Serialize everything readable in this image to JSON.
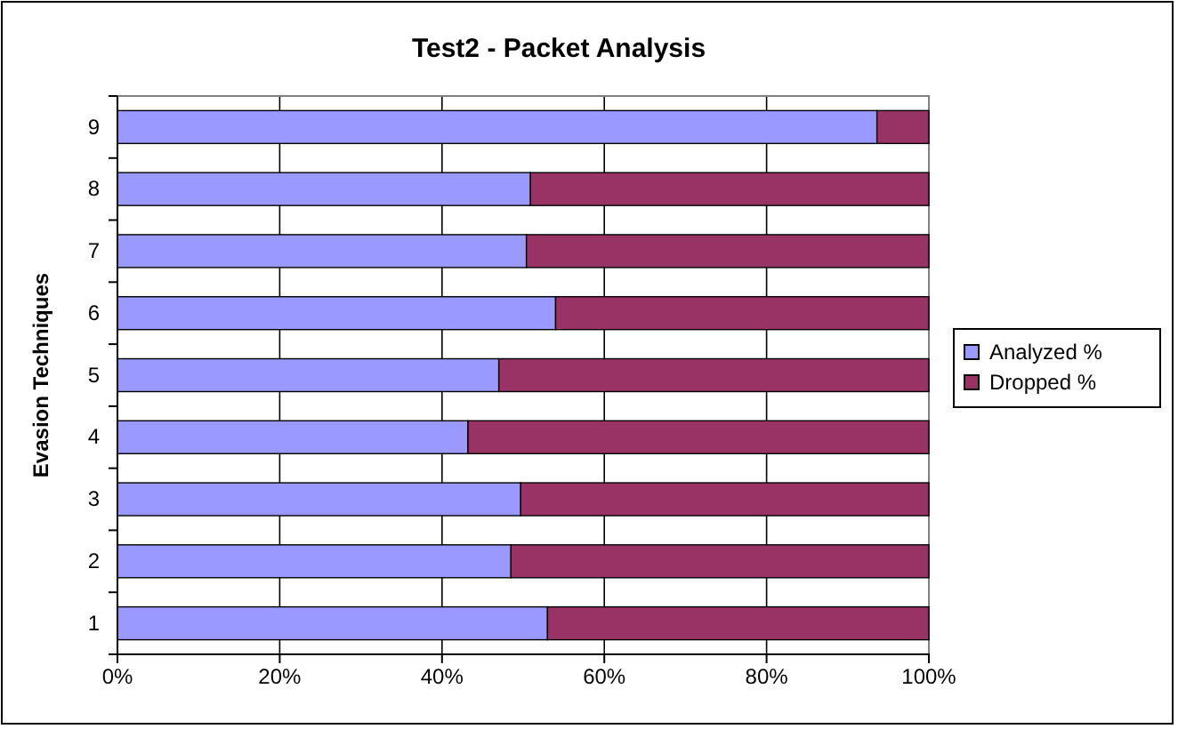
{
  "chart_data": {
    "type": "bar",
    "title": "Test2 - Packet Analysis",
    "ylabel": "Evasion Techniques",
    "orientation": "horizontal",
    "stacked": true,
    "categories": [
      "9",
      "8",
      "7",
      "6",
      "5",
      "4",
      "3",
      "2",
      "1"
    ],
    "series": [
      {
        "name": "Analyzed %",
        "color": "#9999ff",
        "values": [
          93.6,
          50.9,
          50.4,
          54.0,
          47.0,
          43.2,
          49.7,
          48.5,
          53.0
        ]
      },
      {
        "name": "Dropped %",
        "color": "#993366",
        "values": [
          6.4,
          49.1,
          49.6,
          46.0,
          53.0,
          56.8,
          50.3,
          51.5,
          47.0
        ]
      }
    ],
    "xlim": [
      0,
      100
    ],
    "xticks": [
      {
        "value": 0,
        "label": "0%"
      },
      {
        "value": 20,
        "label": "20%"
      },
      {
        "value": 40,
        "label": "40%"
      },
      {
        "value": 60,
        "label": "60%"
      },
      {
        "value": 80,
        "label": "80%"
      },
      {
        "value": 100,
        "label": "100%"
      }
    ],
    "grid": "x",
    "legend": "right"
  }
}
